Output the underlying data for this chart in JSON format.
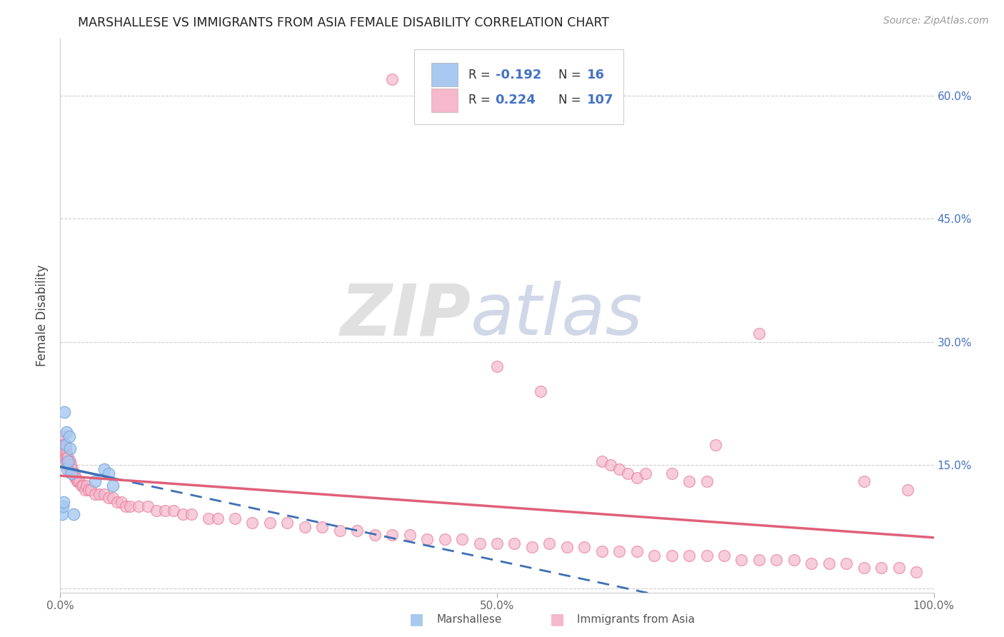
{
  "title": "MARSHALLESE VS IMMIGRANTS FROM ASIA FEMALE DISABILITY CORRELATION CHART",
  "source": "Source: ZipAtlas.com",
  "ylabel": "Female Disability",
  "xlim": [
    0.0,
    1.0
  ],
  "ylim": [
    -0.005,
    0.67
  ],
  "ytick_positions": [
    0.0,
    0.15,
    0.3,
    0.45,
    0.6
  ],
  "ytick_labels": [
    "",
    "15.0%",
    "30.0%",
    "45.0%",
    "60.0%"
  ],
  "xtick_positions": [
    0.0,
    0.5,
    1.0
  ],
  "xtick_labels": [
    "0.0%",
    "50.0%",
    "100.0%"
  ],
  "grid_color": "#c8c8c8",
  "bg_color": "#ffffff",
  "watermark_zip": "ZIP",
  "watermark_atlas": "atlas",
  "marshallese_color": "#a8c8f0",
  "marshallese_edge": "#7aabdf",
  "asia_color": "#f5b8cc",
  "asia_edge": "#e8819f",
  "trendline_blue": "#3d6fb5",
  "trendline_pink": "#e0607a",
  "legend_text_color": "#4472c4",
  "legend_label_color": "#555555",
  "marshallese_x": [
    0.002,
    0.003,
    0.004,
    0.005,
    0.006,
    0.007,
    0.008,
    0.009,
    0.01,
    0.011,
    0.013,
    0.015,
    0.04,
    0.05,
    0.055,
    0.06
  ],
  "marshallese_y": [
    0.09,
    0.1,
    0.105,
    0.215,
    0.175,
    0.19,
    0.145,
    0.155,
    0.185,
    0.17,
    0.14,
    0.09,
    0.13,
    0.145,
    0.14,
    0.125
  ],
  "asia_x": [
    0.002,
    0.003,
    0.003,
    0.004,
    0.004,
    0.005,
    0.005,
    0.005,
    0.006,
    0.006,
    0.007,
    0.007,
    0.008,
    0.008,
    0.009,
    0.009,
    0.01,
    0.01,
    0.011,
    0.011,
    0.012,
    0.013,
    0.014,
    0.015,
    0.016,
    0.017,
    0.018,
    0.019,
    0.02,
    0.022,
    0.024,
    0.026,
    0.028,
    0.03,
    0.032,
    0.035,
    0.04,
    0.045,
    0.05,
    0.055,
    0.06,
    0.065,
    0.07,
    0.075,
    0.08,
    0.09,
    0.1,
    0.11,
    0.12,
    0.13,
    0.14,
    0.15,
    0.17,
    0.18,
    0.2,
    0.22,
    0.24,
    0.26,
    0.28,
    0.3,
    0.32,
    0.34,
    0.36,
    0.38,
    0.4,
    0.42,
    0.44,
    0.46,
    0.48,
    0.5,
    0.52,
    0.54,
    0.56,
    0.58,
    0.6,
    0.62,
    0.64,
    0.66,
    0.68,
    0.7,
    0.72,
    0.74,
    0.76,
    0.78,
    0.8,
    0.82,
    0.84,
    0.86,
    0.88,
    0.9,
    0.92,
    0.94,
    0.96,
    0.98,
    0.5,
    0.55,
    0.75,
    0.8,
    0.38,
    0.62,
    0.63,
    0.64,
    0.65,
    0.66,
    0.67,
    0.7,
    0.72,
    0.74,
    0.92,
    0.97
  ],
  "asia_y": [
    0.18,
    0.185,
    0.175,
    0.17,
    0.165,
    0.175,
    0.165,
    0.16,
    0.17,
    0.16,
    0.165,
    0.155,
    0.16,
    0.15,
    0.16,
    0.15,
    0.155,
    0.145,
    0.155,
    0.145,
    0.15,
    0.145,
    0.145,
    0.14,
    0.14,
    0.135,
    0.135,
    0.13,
    0.13,
    0.13,
    0.125,
    0.125,
    0.12,
    0.125,
    0.12,
    0.12,
    0.115,
    0.115,
    0.115,
    0.11,
    0.11,
    0.105,
    0.105,
    0.1,
    0.1,
    0.1,
    0.1,
    0.095,
    0.095,
    0.095,
    0.09,
    0.09,
    0.085,
    0.085,
    0.085,
    0.08,
    0.08,
    0.08,
    0.075,
    0.075,
    0.07,
    0.07,
    0.065,
    0.065,
    0.065,
    0.06,
    0.06,
    0.06,
    0.055,
    0.055,
    0.055,
    0.05,
    0.055,
    0.05,
    0.05,
    0.045,
    0.045,
    0.045,
    0.04,
    0.04,
    0.04,
    0.04,
    0.04,
    0.035,
    0.035,
    0.035,
    0.035,
    0.03,
    0.03,
    0.03,
    0.025,
    0.025,
    0.025,
    0.02,
    0.27,
    0.24,
    0.175,
    0.31,
    0.62,
    0.155,
    0.15,
    0.145,
    0.14,
    0.135,
    0.14,
    0.14,
    0.13,
    0.13,
    0.13,
    0.12
  ]
}
